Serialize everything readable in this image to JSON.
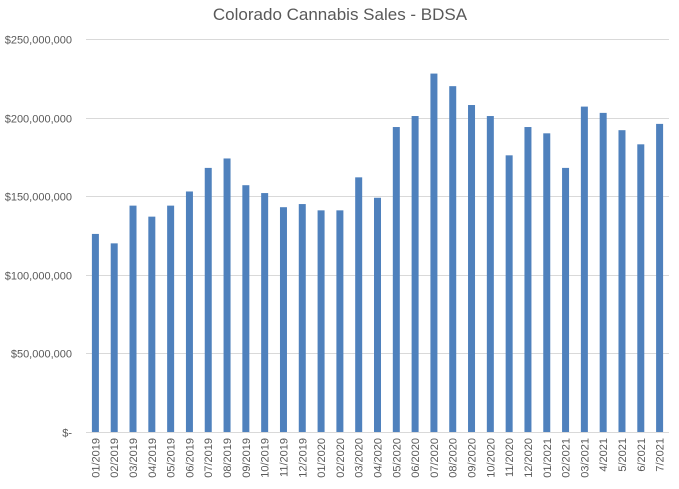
{
  "chart_data": {
    "type": "bar",
    "title": "Colorado Cannabis Sales - BDSA",
    "xlabel": "",
    "ylabel": "",
    "ylim": [
      0,
      250000000
    ],
    "y_ticks": [
      0,
      50000000,
      100000000,
      150000000,
      200000000,
      250000000
    ],
    "y_tick_labels": [
      "$-",
      "$50,000,000",
      "$100,000,000",
      "$150,000,000",
      "$200,000,000",
      "$250,000,000"
    ],
    "categories": [
      "01/2019",
      "02/2019",
      "03/2019",
      "04/2019",
      "05/2019",
      "06/2019",
      "07/2019",
      "08/2019",
      "09/2019",
      "10/2019",
      "11/2019",
      "12/2019",
      "01/2020",
      "02/2020",
      "03/2020",
      "04/2020",
      "05/2020",
      "06/2020",
      "07/2020",
      "08/2020",
      "09/2020",
      "10/2020",
      "11/2020",
      "12/2020",
      "01/2021",
      "02/2021",
      "03/2021",
      "4/2021",
      "5/2021",
      "6/2021",
      "7/2021"
    ],
    "values": [
      126000000,
      120000000,
      144000000,
      137000000,
      144000000,
      153000000,
      168000000,
      174000000,
      157000000,
      152000000,
      143000000,
      145000000,
      141000000,
      141000000,
      162000000,
      149000000,
      194000000,
      201000000,
      228000000,
      220000000,
      208000000,
      201000000,
      176000000,
      194000000,
      190000000,
      168000000,
      207000000,
      203000000,
      192000000,
      183000000,
      196000000
    ],
    "bar_color": "#4f81bd",
    "grid": true,
    "legend": "none"
  }
}
